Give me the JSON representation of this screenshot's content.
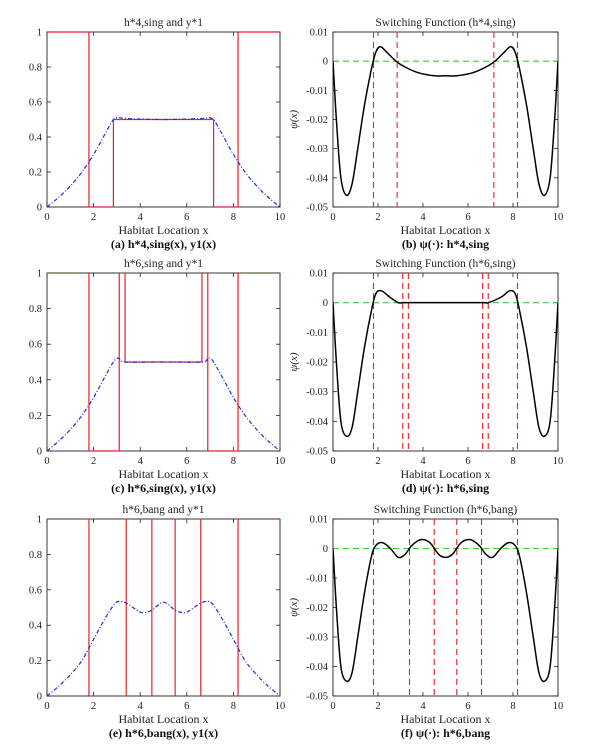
{
  "figure": {
    "panels": [
      {
        "id": "a",
        "title": "h*4,sing and y*1",
        "xlabel": "Habitat Location x",
        "ylabel": "",
        "caption": "(a) h*4,sing(x), y1(x)"
      },
      {
        "id": "b",
        "title": "Switching Function (h*4,sing)",
        "xlabel": "Habitat Location x",
        "ylabel": "ψ(x)",
        "caption": "(b) ψ(·): h*4,sing"
      },
      {
        "id": "c",
        "title": "h*6,sing and y*1",
        "xlabel": "Habitat Location x",
        "ylabel": "",
        "caption": "(c) h*6,sing(x), y1(x)"
      },
      {
        "id": "d",
        "title": "Switching Function (h*6,sing)",
        "xlabel": "Habitat Location x",
        "ylabel": "ψ(x)",
        "caption": "(d) ψ(·): h*6,sing"
      },
      {
        "id": "e",
        "title": "h*6,bang and y*1",
        "xlabel": "Habitat Location x",
        "ylabel": "",
        "caption": "(e) h*6,bang(x), y1(x)"
      },
      {
        "id": "f",
        "title": "Switching Function (h*6,bang)",
        "xlabel": "Habitat Location x",
        "ylabel": "ψ(x)",
        "caption": "(f) ψ(·): h*6,bang"
      }
    ]
  },
  "colors": {
    "control": "#e8202a",
    "state": "#1f2ed6",
    "psi": "#000000",
    "zero_line": "#3ec83e",
    "switch_line": "#e8202a",
    "axis": "#222222"
  },
  "chart_data": [
    {
      "panel": "a",
      "type": "line",
      "title": "h*4,sing and y*1",
      "xlabel": "Habitat Location x",
      "ylabel": "",
      "xlim": [
        0,
        10
      ],
      "ylim": [
        0,
        1
      ],
      "xticks": [
        0,
        2,
        4,
        6,
        8,
        10
      ],
      "yticks": [
        0,
        0.2,
        0.4,
        0.6,
        0.8,
        1
      ],
      "series": [
        {
          "name": "h*4,sing",
          "style": "solid",
          "color": "control",
          "points": [
            [
              0,
              1
            ],
            [
              1.8,
              1
            ],
            [
              1.8,
              0
            ],
            [
              2.85,
              0
            ],
            [
              2.85,
              0.5
            ],
            [
              7.15,
              0.5
            ],
            [
              7.15,
              0
            ],
            [
              8.2,
              0
            ],
            [
              8.2,
              1
            ],
            [
              10,
              1
            ]
          ]
        },
        {
          "name": "y1",
          "style": "dashdot",
          "color": "state",
          "points": [
            [
              0,
              0
            ],
            [
              0.5,
              0.055
            ],
            [
              1,
              0.12
            ],
            [
              1.5,
              0.2
            ],
            [
              2,
              0.3
            ],
            [
              2.5,
              0.42
            ],
            [
              2.8,
              0.49
            ],
            [
              3,
              0.51
            ],
            [
              3.5,
              0.505
            ],
            [
              5,
              0.5
            ],
            [
              6.5,
              0.505
            ],
            [
              7,
              0.51
            ],
            [
              7.2,
              0.49
            ],
            [
              7.5,
              0.42
            ],
            [
              8,
              0.3
            ],
            [
              8.5,
              0.2
            ],
            [
              9,
              0.12
            ],
            [
              9.5,
              0.055
            ],
            [
              10,
              0
            ]
          ]
        }
      ]
    },
    {
      "panel": "b",
      "type": "line",
      "title": "Switching Function (h*4,sing)",
      "xlabel": "Habitat Location x",
      "ylabel": "ψ(x)",
      "xlim": [
        0,
        10
      ],
      "ylim": [
        -0.05,
        0.01
      ],
      "xticks": [
        0,
        2,
        4,
        6,
        8,
        10
      ],
      "yticks": [
        -0.05,
        -0.04,
        -0.03,
        -0.02,
        -0.01,
        0,
        0.01
      ],
      "zero_line": 0,
      "switch_points": [
        1.8,
        2.85,
        7.15,
        8.2
      ],
      "series": [
        {
          "name": "ψ",
          "style": "solid",
          "color": "psi",
          "points": [
            [
              0,
              0
            ],
            [
              0.15,
              -0.02
            ],
            [
              0.35,
              -0.04
            ],
            [
              0.6,
              -0.046
            ],
            [
              0.85,
              -0.042
            ],
            [
              1.1,
              -0.03
            ],
            [
              1.4,
              -0.015
            ],
            [
              1.7,
              -0.003
            ],
            [
              1.9,
              0.003
            ],
            [
              2.1,
              0.005
            ],
            [
              2.4,
              0.003
            ],
            [
              2.8,
              0.0
            ],
            [
              3.2,
              -0.002
            ],
            [
              3.8,
              -0.004
            ],
            [
              4.5,
              -0.005
            ],
            [
              5,
              -0.005
            ],
            [
              5.5,
              -0.005
            ],
            [
              6.2,
              -0.004
            ],
            [
              6.8,
              -0.002
            ],
            [
              7.2,
              0.0
            ],
            [
              7.6,
              0.003
            ],
            [
              7.9,
              0.005
            ],
            [
              8.1,
              0.003
            ],
            [
              8.3,
              -0.003
            ],
            [
              8.6,
              -0.015
            ],
            [
              8.9,
              -0.03
            ],
            [
              9.15,
              -0.042
            ],
            [
              9.4,
              -0.046
            ],
            [
              9.65,
              -0.04
            ],
            [
              9.85,
              -0.02
            ],
            [
              10,
              0
            ]
          ]
        }
      ]
    },
    {
      "panel": "c",
      "type": "line",
      "title": "h*6,sing and y*1",
      "xlabel": "Habitat Location x",
      "ylabel": "",
      "xlim": [
        0,
        10
      ],
      "ylim": [
        0,
        1
      ],
      "xticks": [
        0,
        2,
        4,
        6,
        8,
        10
      ],
      "yticks": [
        0,
        0.2,
        0.4,
        0.6,
        0.8,
        1
      ],
      "series": [
        {
          "name": "h*6,sing",
          "style": "solid",
          "color": "control",
          "points": [
            [
              0,
              1
            ],
            [
              1.8,
              1
            ],
            [
              1.8,
              0
            ],
            [
              3.1,
              0
            ],
            [
              3.1,
              1
            ],
            [
              3.35,
              1
            ],
            [
              3.35,
              0.5
            ],
            [
              6.65,
              0.5
            ],
            [
              6.65,
              1
            ],
            [
              6.9,
              1
            ],
            [
              6.9,
              0
            ],
            [
              8.2,
              0
            ],
            [
              8.2,
              1
            ],
            [
              10,
              1
            ]
          ]
        },
        {
          "name": "y1",
          "style": "dashdot",
          "color": "state",
          "points": [
            [
              0,
              0
            ],
            [
              0.5,
              0.055
            ],
            [
              1,
              0.12
            ],
            [
              1.5,
              0.2
            ],
            [
              2,
              0.3
            ],
            [
              2.5,
              0.42
            ],
            [
              2.9,
              0.51
            ],
            [
              3.1,
              0.52
            ],
            [
              3.35,
              0.5
            ],
            [
              5,
              0.5
            ],
            [
              6.65,
              0.5
            ],
            [
              6.9,
              0.52
            ],
            [
              7.1,
              0.51
            ],
            [
              7.5,
              0.42
            ],
            [
              8,
              0.3
            ],
            [
              8.5,
              0.2
            ],
            [
              9,
              0.12
            ],
            [
              9.5,
              0.055
            ],
            [
              10,
              0
            ]
          ]
        }
      ]
    },
    {
      "panel": "d",
      "type": "line",
      "title": "Switching Function (h*6,sing)",
      "xlabel": "Habitat Location x",
      "ylabel": "ψ(x)",
      "xlim": [
        0,
        10
      ],
      "ylim": [
        -0.05,
        0.01
      ],
      "xticks": [
        0,
        2,
        4,
        6,
        8,
        10
      ],
      "yticks": [
        -0.05,
        -0.04,
        -0.03,
        -0.02,
        -0.01,
        0,
        0.01
      ],
      "zero_line": 0,
      "switch_points": [
        1.8,
        3.1,
        3.35,
        6.65,
        6.9,
        8.2
      ],
      "series": [
        {
          "name": "ψ",
          "style": "solid",
          "color": "psi",
          "points": [
            [
              0,
              0
            ],
            [
              0.15,
              -0.02
            ],
            [
              0.35,
              -0.04
            ],
            [
              0.6,
              -0.045
            ],
            [
              0.85,
              -0.042
            ],
            [
              1.1,
              -0.03
            ],
            [
              1.4,
              -0.015
            ],
            [
              1.7,
              -0.003
            ],
            [
              1.9,
              0.003
            ],
            [
              2.15,
              0.004
            ],
            [
              2.5,
              0.002
            ],
            [
              2.9,
              0.0
            ],
            [
              3.1,
              0.0
            ],
            [
              3.35,
              0.0
            ],
            [
              5,
              0.0
            ],
            [
              6.65,
              0.0
            ],
            [
              6.9,
              0.0
            ],
            [
              7.5,
              0.002
            ],
            [
              7.85,
              0.004
            ],
            [
              8.1,
              0.003
            ],
            [
              8.3,
              -0.003
            ],
            [
              8.6,
              -0.015
            ],
            [
              8.9,
              -0.03
            ],
            [
              9.15,
              -0.042
            ],
            [
              9.4,
              -0.045
            ],
            [
              9.65,
              -0.04
            ],
            [
              9.85,
              -0.02
            ],
            [
              10,
              0
            ]
          ]
        }
      ]
    },
    {
      "panel": "e",
      "type": "line",
      "title": "h*6,bang and y*1",
      "xlabel": "Habitat Location x",
      "ylabel": "",
      "xlim": [
        0,
        10
      ],
      "ylim": [
        0,
        1
      ],
      "xticks": [
        0,
        2,
        4,
        6,
        8,
        10
      ],
      "yticks": [
        0,
        0.2,
        0.4,
        0.6,
        0.8,
        1
      ],
      "series": [
        {
          "name": "h*6,bang",
          "style": "solid",
          "color": "control",
          "points": [
            [
              0,
              1
            ],
            [
              1.8,
              1
            ],
            [
              1.8,
              0
            ],
            [
              3.4,
              0
            ],
            [
              3.4,
              1
            ],
            [
              4.5,
              1
            ],
            [
              4.5,
              0
            ],
            [
              5.5,
              0
            ],
            [
              5.5,
              1
            ],
            [
              6.6,
              1
            ],
            [
              6.6,
              0
            ],
            [
              8.2,
              0
            ],
            [
              8.2,
              1
            ],
            [
              10,
              1
            ]
          ]
        },
        {
          "name": "y1",
          "style": "dashdot",
          "color": "state",
          "points": [
            [
              0,
              0
            ],
            [
              0.5,
              0.055
            ],
            [
              1,
              0.12
            ],
            [
              1.5,
              0.2
            ],
            [
              2,
              0.32
            ],
            [
              2.5,
              0.44
            ],
            [
              2.9,
              0.52
            ],
            [
              3.1,
              0.535
            ],
            [
              3.4,
              0.525
            ],
            [
              3.8,
              0.49
            ],
            [
              4.1,
              0.47
            ],
            [
              4.5,
              0.485
            ],
            [
              5,
              0.53
            ],
            [
              5.5,
              0.485
            ],
            [
              5.9,
              0.47
            ],
            [
              6.2,
              0.49
            ],
            [
              6.6,
              0.525
            ],
            [
              6.9,
              0.535
            ],
            [
              7.1,
              0.52
            ],
            [
              7.5,
              0.44
            ],
            [
              8,
              0.32
            ],
            [
              8.5,
              0.2
            ],
            [
              9,
              0.12
            ],
            [
              9.5,
              0.055
            ],
            [
              10,
              0
            ]
          ]
        }
      ]
    },
    {
      "panel": "f",
      "type": "line",
      "title": "Switching Function (h*6,bang)",
      "xlabel": "Habitat Location x",
      "ylabel": "ψ(x)",
      "xlim": [
        0,
        10
      ],
      "ylim": [
        -0.05,
        0.01
      ],
      "xticks": [
        0,
        2,
        4,
        6,
        8,
        10
      ],
      "yticks": [
        -0.05,
        -0.04,
        -0.03,
        -0.02,
        -0.01,
        0,
        0.01
      ],
      "zero_line": 0,
      "switch_points": [
        1.8,
        3.4,
        4.5,
        5.5,
        6.6,
        8.2
      ],
      "series": [
        {
          "name": "ψ",
          "style": "solid",
          "color": "psi",
          "points": [
            [
              0,
              0
            ],
            [
              0.15,
              -0.02
            ],
            [
              0.35,
              -0.04
            ],
            [
              0.6,
              -0.045
            ],
            [
              0.85,
              -0.042
            ],
            [
              1.1,
              -0.03
            ],
            [
              1.4,
              -0.015
            ],
            [
              1.7,
              -0.003
            ],
            [
              1.9,
              0.001
            ],
            [
              2.2,
              0.002
            ],
            [
              2.55,
              0.0
            ],
            [
              2.9,
              -0.003
            ],
            [
              3.2,
              -0.002
            ],
            [
              3.5,
              0.001
            ],
            [
              3.9,
              0.003
            ],
            [
              4.3,
              0.002
            ],
            [
              4.7,
              -0.002
            ],
            [
              5,
              -0.003
            ],
            [
              5.3,
              -0.002
            ],
            [
              5.7,
              0.002
            ],
            [
              6.1,
              0.003
            ],
            [
              6.5,
              0.001
            ],
            [
              6.8,
              -0.002
            ],
            [
              7.1,
              -0.003
            ],
            [
              7.45,
              0.0
            ],
            [
              7.8,
              0.002
            ],
            [
              8.1,
              0.001
            ],
            [
              8.3,
              -0.003
            ],
            [
              8.6,
              -0.015
            ],
            [
              8.9,
              -0.03
            ],
            [
              9.15,
              -0.042
            ],
            [
              9.4,
              -0.045
            ],
            [
              9.65,
              -0.04
            ],
            [
              9.85,
              -0.02
            ],
            [
              10,
              0
            ]
          ]
        }
      ]
    }
  ]
}
